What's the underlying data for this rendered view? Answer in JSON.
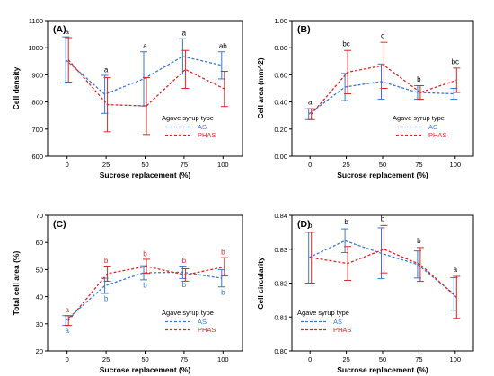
{
  "chart_data": [
    {
      "type": "line",
      "panel_label": "(A)",
      "xlabel": "Sucrose replacement (%)",
      "ylabel": "Cell density",
      "categories": [
        "0",
        "25",
        "50",
        "75",
        "100"
      ],
      "ylim": [
        600,
        1100
      ],
      "yticks": [
        "600",
        "700",
        "800",
        "900",
        "1000",
        "1100"
      ],
      "legend": {
        "title": "Agave syrup type",
        "placement": "lower-right"
      },
      "series": [
        {
          "name": "AS",
          "color": "#3a78c9",
          "values": [
            955,
            828,
            885,
            968,
            935
          ],
          "err": [
            85,
            70,
            100,
            65,
            50
          ]
        },
        {
          "name": "PHAS",
          "color": "#d62728",
          "values": [
            955,
            790,
            785,
            920,
            848
          ],
          "err": [
            82,
            100,
            105,
            70,
            65
          ]
        }
      ],
      "letters": [
        {
          "text": "a",
          "color": "#000000",
          "pos": "above",
          "y": 1040
        },
        {
          "text": "a",
          "color": "#000000",
          "pos": "above",
          "y": 900
        },
        {
          "text": "a",
          "color": "#000000",
          "pos": "above",
          "y": 988
        },
        {
          "text": "a",
          "color": "#000000",
          "pos": "above",
          "y": 1036
        },
        {
          "text": "ab",
          "color": "#000000",
          "pos": "above",
          "y": 988
        }
      ]
    },
    {
      "type": "line",
      "panel_label": "(B)",
      "xlabel": "Sucrose replacement (%)",
      "ylabel": "Cell area (mm^2)",
      "categories": [
        "0",
        "25",
        "50",
        "75",
        "100"
      ],
      "ylim": [
        0,
        1.0
      ],
      "yticks": [
        "0.00",
        "0.20",
        "0.40",
        "0.60",
        "0.80",
        "1.00"
      ],
      "legend": {
        "title": "Agave syrup type",
        "placement": "lower-right"
      },
      "series": [
        {
          "name": "AS",
          "color": "#3a78c9",
          "values": [
            0.31,
            0.51,
            0.55,
            0.47,
            0.46
          ],
          "err": [
            0.04,
            0.1,
            0.13,
            0.05,
            0.04
          ]
        },
        {
          "name": "PHAS",
          "color": "#d62728",
          "values": [
            0.31,
            0.62,
            0.67,
            0.47,
            0.56
          ],
          "err": [
            0.04,
            0.16,
            0.17,
            0.05,
            0.09
          ]
        }
      ],
      "letters": [
        {
          "text": "a",
          "color": "#000000",
          "pos": "above",
          "y": 0.36
        },
        {
          "text": "bc",
          "color": "#000000",
          "pos": "above",
          "y": 0.79
        },
        {
          "text": "c",
          "color": "#000000",
          "pos": "above",
          "y": 0.85
        },
        {
          "text": "b",
          "color": "#000000",
          "pos": "above",
          "y": 0.53
        },
        {
          "text": "bc",
          "color": "#000000",
          "pos": "above",
          "y": 0.66
        }
      ]
    },
    {
      "type": "line",
      "panel_label": "(C)",
      "xlabel": "Sucrose replacement (%)",
      "ylabel": "Total cell area (%)",
      "categories": [
        "0",
        "25",
        "50",
        "75",
        "100"
      ],
      "ylim": [
        20,
        70
      ],
      "yticks": [
        "20",
        "30",
        "40",
        "50",
        "60",
        "70"
      ],
      "legend": {
        "title": "Agave syrup type",
        "placement": "lower-right"
      },
      "series": [
        {
          "name": "AS",
          "color": "#3a78c9",
          "values": [
            31.2,
            44.0,
            48.8,
            49.0,
            46.8
          ],
          "err": [
            1.8,
            2.8,
            2.6,
            2.3,
            3.2
          ]
        },
        {
          "name": "PHAS",
          "color": "#d62728",
          "values": [
            31.2,
            48.5,
            51.2,
            48.0,
            51.0
          ],
          "err": [
            1.8,
            2.8,
            2.6,
            2.3,
            3.4
          ]
        }
      ],
      "letters": [
        {
          "text": "a",
          "color": "#d62728",
          "pos": "above",
          "y": 33.3
        },
        {
          "text": "b",
          "color": "#d62728",
          "pos": "above",
          "y": 51.5
        },
        {
          "text": "b",
          "color": "#d62728",
          "pos": "above",
          "y": 54.0
        },
        {
          "text": "b",
          "color": "#d62728",
          "pos": "above",
          "y": 51.5
        },
        {
          "text": "b",
          "color": "#d62728",
          "pos": "above",
          "y": 54.6
        },
        {
          "text": "a",
          "color": "#3a78c9",
          "pos": "below",
          "y": 29.2
        },
        {
          "text": "b",
          "color": "#3a78c9",
          "pos": "below",
          "y": 41.0
        },
        {
          "text": "b",
          "color": "#3a78c9",
          "pos": "below",
          "y": 46.0
        },
        {
          "text": "b",
          "color": "#3a78c9",
          "pos": "below",
          "y": 46.2
        },
        {
          "text": "b",
          "color": "#3a78c9",
          "pos": "below",
          "y": 43.4
        }
      ]
    },
    {
      "type": "line",
      "panel_label": "(D)",
      "xlabel": "Sucrose replacement (%)",
      "ylabel": "Cell circularity",
      "categories": [
        "0",
        "25",
        "50",
        "75",
        "100"
      ],
      "ylim": [
        0.8,
        0.84
      ],
      "yticks": [
        "0.80",
        "0.81",
        "0.82",
        "0.83",
        "0.84"
      ],
      "legend": {
        "title": "Agave syrup type",
        "placement": "lower-left"
      },
      "series": [
        {
          "name": "AS",
          "color": "#3a78c9",
          "values": [
            0.8275,
            0.8325,
            0.8288,
            0.8255,
            0.8168
          ],
          "err": [
            0.0075,
            0.0035,
            0.0075,
            0.004,
            0.0048
          ]
        },
        {
          "name": "PHAS",
          "color": "#d62728",
          "values": [
            0.8275,
            0.8258,
            0.83,
            0.8255,
            0.8158
          ],
          "err": [
            0.0075,
            0.005,
            0.007,
            0.005,
            0.0062
          ]
        }
      ],
      "letters": [
        {
          "text": "b",
          "color": "#000000",
          "pos": "above",
          "y": 0.8355
        },
        {
          "text": "b",
          "color": "#000000",
          "pos": "above",
          "y": 0.8365
        },
        {
          "text": "b",
          "color": "#000000",
          "pos": "above",
          "y": 0.8375
        },
        {
          "text": "b",
          "color": "#000000",
          "pos": "above",
          "y": 0.831
        },
        {
          "text": "a",
          "color": "#000000",
          "pos": "above",
          "y": 0.8225
        }
      ]
    }
  ]
}
